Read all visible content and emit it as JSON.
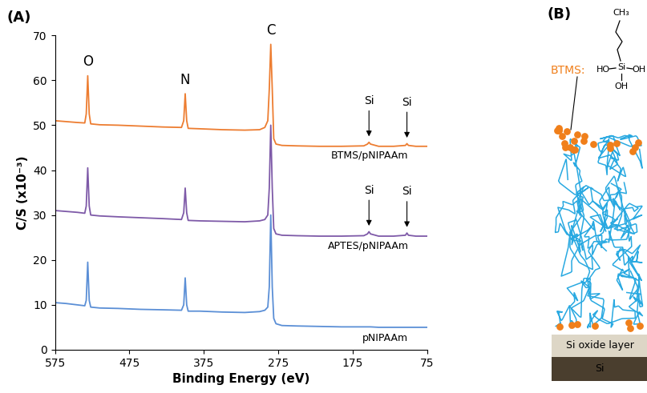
{
  "chart_data": {
    "type": "line",
    "panel_label": "(A)",
    "x_label": "Binding Energy (eV)",
    "y_label": "C/S (x10⁻³)",
    "xlim": [
      575,
      75
    ],
    "xticks": [
      575,
      475,
      375,
      275,
      175,
      75
    ],
    "ylim": [
      0,
      70
    ],
    "yticks": [
      0,
      10,
      20,
      30,
      40,
      50,
      60,
      70
    ],
    "grid": false,
    "x": [
      575,
      560,
      545,
      535,
      533,
      531,
      529,
      527,
      515,
      490,
      460,
      430,
      405,
      402,
      400,
      398,
      396,
      380,
      350,
      320,
      300,
      293,
      289,
      287,
      285,
      283,
      281,
      278,
      270,
      250,
      220,
      190,
      160,
      155,
      153,
      151,
      140,
      120,
      104,
      102,
      100,
      90,
      75
    ],
    "annotations": [
      {
        "text": "O",
        "x": 531
      },
      {
        "text": "N",
        "x": 400
      },
      {
        "text": "C",
        "x": 285
      }
    ],
    "series": [
      {
        "name": "BTMS/pNIPAAm",
        "color": "#ed7d31",
        "values": [
          51.0,
          50.8,
          50.6,
          50.5,
          52.5,
          61.0,
          52.5,
          50.3,
          50.1,
          50.0,
          49.8,
          49.6,
          49.5,
          51.0,
          57.0,
          51.0,
          49.3,
          49.2,
          49.0,
          48.9,
          49.0,
          49.5,
          51.0,
          58.0,
          68.0,
          58.0,
          47.0,
          45.8,
          45.5,
          45.4,
          45.3,
          45.3,
          45.4,
          45.8,
          46.2,
          45.8,
          45.3,
          45.3,
          45.5,
          45.9,
          45.5,
          45.3,
          45.3
        ],
        "annotations": [
          {
            "text": "Si",
            "x": 153
          },
          {
            "text": "Si",
            "x": 102
          }
        ]
      },
      {
        "name": "APTES/pNIPAAm",
        "color": "#7e5aa8",
        "values": [
          31.0,
          30.8,
          30.6,
          30.4,
          32.0,
          40.5,
          32.0,
          30.0,
          29.8,
          29.6,
          29.4,
          29.2,
          29.0,
          30.5,
          36.0,
          30.5,
          28.8,
          28.7,
          28.6,
          28.5,
          28.7,
          29.0,
          30.0,
          36.0,
          50.0,
          36.0,
          27.0,
          25.8,
          25.5,
          25.4,
          25.3,
          25.3,
          25.4,
          25.8,
          26.3,
          25.8,
          25.3,
          25.3,
          25.5,
          26.0,
          25.5,
          25.3,
          25.3
        ],
        "annotations": [
          {
            "text": "Si",
            "x": 153
          },
          {
            "text": "Si",
            "x": 102
          }
        ]
      },
      {
        "name": "pNIPAAm",
        "color": "#5b8fd6",
        "values": [
          10.5,
          10.3,
          10.0,
          9.8,
          11.0,
          19.5,
          11.0,
          9.5,
          9.3,
          9.2,
          9.0,
          8.9,
          8.8,
          10.0,
          16.0,
          10.0,
          8.6,
          8.6,
          8.4,
          8.3,
          8.5,
          8.8,
          9.5,
          14.0,
          30.0,
          14.0,
          7.0,
          5.8,
          5.4,
          5.3,
          5.2,
          5.1,
          5.1,
          5.1,
          5.1,
          5.1,
          5.0,
          5.0,
          5.0,
          5.0,
          5.0,
          5.0,
          5.0
        ],
        "annotations": []
      }
    ]
  },
  "diagram": {
    "panel_label": "(B)",
    "molecule": {
      "name": "BTMS:",
      "top": "CH₃",
      "center": "Si",
      "left": "HO",
      "right": "OH",
      "bottom": "OH"
    },
    "layers": [
      "Si oxide layer",
      "Si"
    ]
  }
}
